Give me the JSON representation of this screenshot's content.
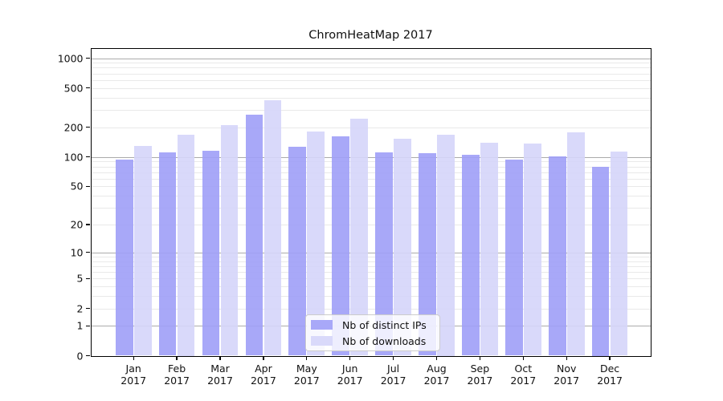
{
  "chart_data": {
    "type": "bar",
    "title": "ChromHeatMap 2017",
    "categories": [
      "Jan 2017",
      "Feb 2017",
      "Mar 2017",
      "Apr 2017",
      "May 2017",
      "Jun 2017",
      "Jul 2017",
      "Aug 2017",
      "Sep 2017",
      "Oct 2017",
      "Nov 2017",
      "Dec 2017"
    ],
    "series": [
      {
        "name": "Nb of distinct IPs",
        "color": "#9e9ef7",
        "values": [
          94,
          112,
          115,
          270,
          126,
          162,
          111,
          109,
          106,
          94,
          102,
          80
        ]
      },
      {
        "name": "Nb of downloads",
        "color": "#d5d5f9",
        "values": [
          129,
          168,
          210,
          375,
          182,
          244,
          152,
          168,
          140,
          136,
          177,
          114
        ]
      }
    ],
    "xlabel": "",
    "ylabel": "",
    "yscale": "log1p",
    "yticks": [
      0,
      1,
      2,
      5,
      10,
      20,
      50,
      100,
      200,
      500,
      1000
    ],
    "ylim": [
      0,
      1250
    ],
    "grid": "major+minor horizontal",
    "legend_position": "lower-center",
    "colors": {
      "major_grid": "#ababab",
      "minor_grid": "#e9e9e9",
      "axis": "#000000"
    }
  }
}
